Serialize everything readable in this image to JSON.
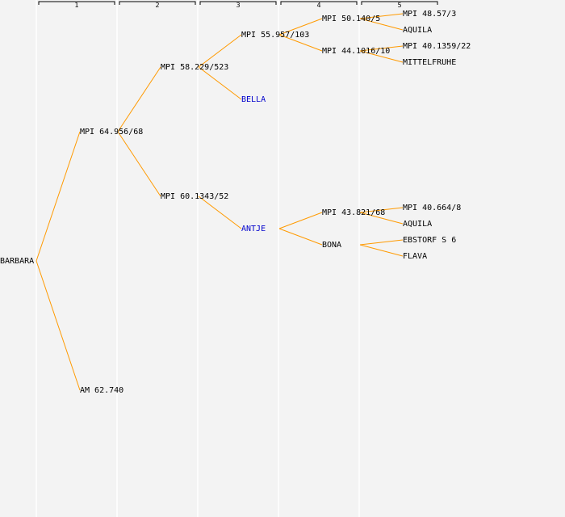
{
  "colors": {
    "background": "#f3f3f3",
    "column_line": "#ffffff",
    "edge": "#ff9a00",
    "text": "#000000",
    "highlight_text": "#0000cc"
  },
  "generations": [
    {
      "id": "g1",
      "label": "1"
    },
    {
      "id": "g2",
      "label": "2"
    },
    {
      "id": "g3",
      "label": "3"
    },
    {
      "id": "g4",
      "label": "4"
    },
    {
      "id": "g5",
      "label": "5"
    }
  ],
  "nodes": [
    {
      "id": "n0",
      "gen": 0,
      "row": 16,
      "label": "BARBARA",
      "highlight": false
    },
    {
      "id": "n1",
      "gen": 1,
      "row": 8,
      "label": "MPI 64.956/68",
      "highlight": false
    },
    {
      "id": "n2",
      "gen": 1,
      "row": 24,
      "label": "AM 62.740",
      "highlight": false
    },
    {
      "id": "n3",
      "gen": 2,
      "row": 4,
      "label": "MPI 58.229/523",
      "highlight": false
    },
    {
      "id": "n4",
      "gen": 2,
      "row": 12,
      "label": "MPI 60.1343/52",
      "highlight": false
    },
    {
      "id": "n5",
      "gen": 3,
      "row": 2,
      "label": "MPI 55.957/103",
      "highlight": false
    },
    {
      "id": "n6",
      "gen": 3,
      "row": 6,
      "label": "BELLA",
      "highlight": true
    },
    {
      "id": "n7",
      "gen": 3,
      "row": 14,
      "label": "ANTJE",
      "highlight": true
    },
    {
      "id": "n8",
      "gen": 4,
      "row": 1,
      "label": "MPI 50.140/5",
      "highlight": false
    },
    {
      "id": "n9",
      "gen": 4,
      "row": 3,
      "label": "MPI 44.1016/10",
      "highlight": false
    },
    {
      "id": "n10",
      "gen": 4,
      "row": 13,
      "label": "MPI 43.821/68",
      "highlight": false
    },
    {
      "id": "n11",
      "gen": 4,
      "row": 15,
      "label": "BONA",
      "highlight": false
    },
    {
      "id": "n12",
      "gen": 5,
      "row": 0.6,
      "label": "MPI 48.57/3",
      "highlight": false
    },
    {
      "id": "n13",
      "gen": 5,
      "row": 1.6,
      "label": "AQUILA",
      "highlight": false
    },
    {
      "id": "n14",
      "gen": 5,
      "row": 2.6,
      "label": "MPI 40.1359/22",
      "highlight": false
    },
    {
      "id": "n15",
      "gen": 5,
      "row": 3.6,
      "label": "MITTELFRUHE",
      "highlight": false
    },
    {
      "id": "n16",
      "gen": 5,
      "row": 12.6,
      "label": "MPI 40.664/8",
      "highlight": false
    },
    {
      "id": "n17",
      "gen": 5,
      "row": 13.6,
      "label": "AQUILA",
      "highlight": false
    },
    {
      "id": "n18",
      "gen": 5,
      "row": 14.6,
      "label": "EBSTORF S 6",
      "highlight": false
    },
    {
      "id": "n19",
      "gen": 5,
      "row": 15.6,
      "label": "FLAVA",
      "highlight": false
    }
  ],
  "edges": [
    [
      "n0",
      "n1"
    ],
    [
      "n0",
      "n2"
    ],
    [
      "n1",
      "n3"
    ],
    [
      "n1",
      "n4"
    ],
    [
      "n3",
      "n5"
    ],
    [
      "n3",
      "n6"
    ],
    [
      "n4",
      "n7"
    ],
    [
      "n5",
      "n8"
    ],
    [
      "n5",
      "n9"
    ],
    [
      "n7",
      "n10"
    ],
    [
      "n7",
      "n11"
    ],
    [
      "n8",
      "n12"
    ],
    [
      "n8",
      "n13"
    ],
    [
      "n9",
      "n14"
    ],
    [
      "n9",
      "n15"
    ],
    [
      "n10",
      "n16"
    ],
    [
      "n10",
      "n17"
    ],
    [
      "n11",
      "n18"
    ],
    [
      "n11",
      "n19"
    ]
  ]
}
